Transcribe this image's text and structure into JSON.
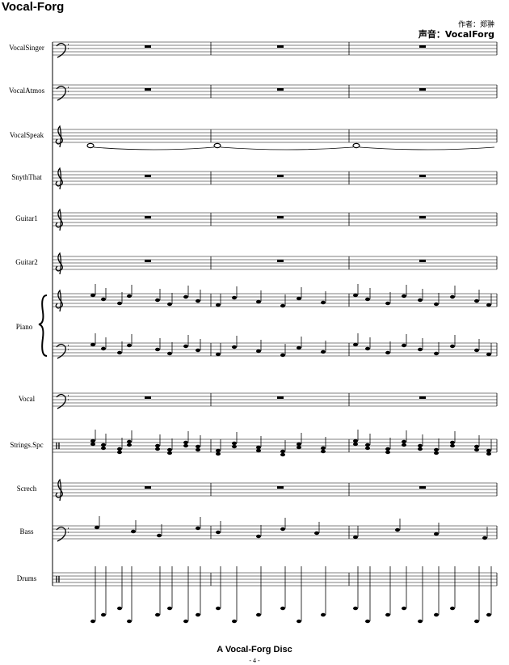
{
  "header": {
    "title": "Vocal-Forg",
    "composer": "作者：郑翀",
    "voice": "声音：VocalForg"
  },
  "instruments": [
    "VocalSinger",
    "VocalAtmos",
    "VocalSpeak",
    "SnythThat",
    "Guitar1",
    "Guitar2",
    "Piano",
    "Vocal",
    "Strings.Spc",
    "Screch",
    "Bass",
    "Drums"
  ],
  "footer": {
    "title": "A Vocal-Forg Disc",
    "page": "- 4 -"
  }
}
